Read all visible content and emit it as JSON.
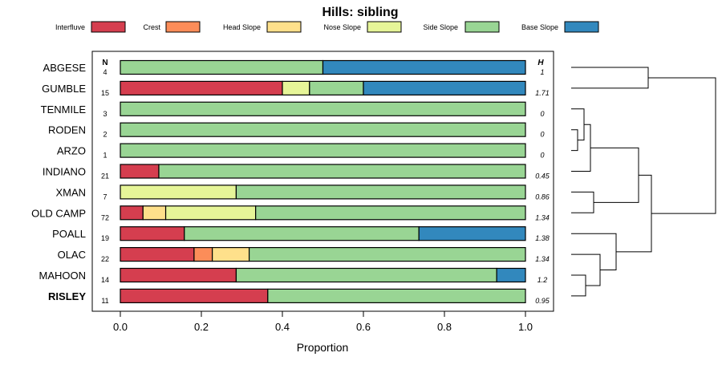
{
  "chart_data": {
    "type": "bar",
    "stacked": true,
    "orientation": "horizontal",
    "title": "Hills: sibling",
    "xlabel": "Proportion",
    "ylabel": "",
    "xlim": [
      0,
      1
    ],
    "xticks": [
      "0.0",
      "0.2",
      "0.4",
      "0.6",
      "0.8",
      "1.0"
    ],
    "n_header": "N",
    "h_header": "H",
    "legend_position": "top",
    "grid": false,
    "highlight_category": "RISLEY",
    "series": [
      {
        "name": "Interfluve",
        "color": "#D53E4F",
        "values": [
          0,
          0.4,
          0,
          0,
          0,
          0.095,
          0,
          0.056,
          0.158,
          0.182,
          0.286,
          0.364
        ]
      },
      {
        "name": "Crest",
        "color": "#FC8D59",
        "values": [
          0,
          0,
          0,
          0,
          0,
          0,
          0,
          0,
          0,
          0.045,
          0,
          0
        ]
      },
      {
        "name": "Head Slope",
        "color": "#FEE08B",
        "values": [
          0,
          0,
          0,
          0,
          0,
          0,
          0,
          0.056,
          0,
          0.091,
          0,
          0
        ]
      },
      {
        "name": "Nose Slope",
        "color": "#E6F598",
        "values": [
          0,
          0.067,
          0,
          0,
          0,
          0,
          0.286,
          0.222,
          0,
          0,
          0,
          0
        ]
      },
      {
        "name": "Side Slope",
        "color": "#99D594",
        "values": [
          0.5,
          0.133,
          1,
          1,
          1,
          0.905,
          0.714,
          0.666,
          0.579,
          0.682,
          0.643,
          0.636
        ]
      },
      {
        "name": "Base Slope",
        "color": "#3288BD",
        "values": [
          0.5,
          0.4,
          0,
          0,
          0,
          0,
          0,
          0,
          0.263,
          0,
          0.071,
          0
        ]
      }
    ],
    "categories": [
      {
        "name": "ABGESE",
        "n": "4",
        "h": "1"
      },
      {
        "name": "GUMBLE",
        "n": "15",
        "h": "1.71"
      },
      {
        "name": "TENMILE",
        "n": "3",
        "h": "0"
      },
      {
        "name": "RODEN",
        "n": "2",
        "h": "0"
      },
      {
        "name": "ARZO",
        "n": "1",
        "h": "0"
      },
      {
        "name": "INDIANO",
        "n": "21",
        "h": "0.45"
      },
      {
        "name": "XMAN",
        "n": "7",
        "h": "0.86"
      },
      {
        "name": "OLD CAMP",
        "n": "72",
        "h": "1.34"
      },
      {
        "name": "POALL",
        "n": "19",
        "h": "1.38"
      },
      {
        "name": "OLAC",
        "n": "22",
        "h": "1.34"
      },
      {
        "name": "MAHOON",
        "n": "14",
        "h": "1.2"
      },
      {
        "name": "RISLEY",
        "n": "11",
        "h": "0.95"
      }
    ],
    "dendrogram": {
      "leaf_order": [
        "ABGESE",
        "GUMBLE",
        "TENMILE",
        "RODEN",
        "ARZO",
        "INDIANO",
        "XMAN",
        "OLD CAMP",
        "POALL",
        "OLAC",
        "MAHOON",
        "RISLEY"
      ],
      "merges": [
        {
          "left": [
            "RODEN"
          ],
          "right": [
            "ARZO"
          ],
          "height": 0.02
        },
        {
          "left": [
            "TENMILE"
          ],
          "right": [
            "RODEN",
            "ARZO"
          ],
          "height": 0.04
        },
        {
          "left": [
            "TENMILE",
            "RODEN",
            "ARZO"
          ],
          "right": [
            "INDIANO"
          ],
          "height": 0.06
        },
        {
          "left": [
            "MAHOON"
          ],
          "right": [
            "RISLEY"
          ],
          "height": 0.045
        },
        {
          "left": [
            "OLAC"
          ],
          "right": [
            "MAHOON",
            "RISLEY"
          ],
          "height": 0.09
        },
        {
          "left": [
            "XMAN"
          ],
          "right": [
            "OLD CAMP"
          ],
          "height": 0.07
        },
        {
          "left": [
            "POALL"
          ],
          "right": [
            "OLAC",
            "MAHOON",
            "RISLEY"
          ],
          "height": 0.14
        },
        {
          "left": [
            "TENMILE",
            "RODEN",
            "ARZO",
            "INDIANO"
          ],
          "right": [
            "XMAN",
            "OLD CAMP"
          ],
          "height": 0.21
        },
        {
          "left": [
            "ABGESE"
          ],
          "right": [
            "GUMBLE"
          ],
          "height": 0.24
        },
        {
          "left": [
            "TENMILE",
            "RODEN",
            "ARZO",
            "INDIANO",
            "XMAN",
            "OLD CAMP"
          ],
          "right": [
            "POALL",
            "OLAC",
            "MAHOON",
            "RISLEY"
          ],
          "height": 0.25
        },
        {
          "left": [
            "ABGESE",
            "GUMBLE"
          ],
          "right": [
            "TENMILE",
            "RODEN",
            "ARZO",
            "INDIANO",
            "XMAN",
            "OLD CAMP",
            "POALL",
            "OLAC",
            "MAHOON",
            "RISLEY"
          ],
          "height": 0.45
        }
      ]
    }
  }
}
